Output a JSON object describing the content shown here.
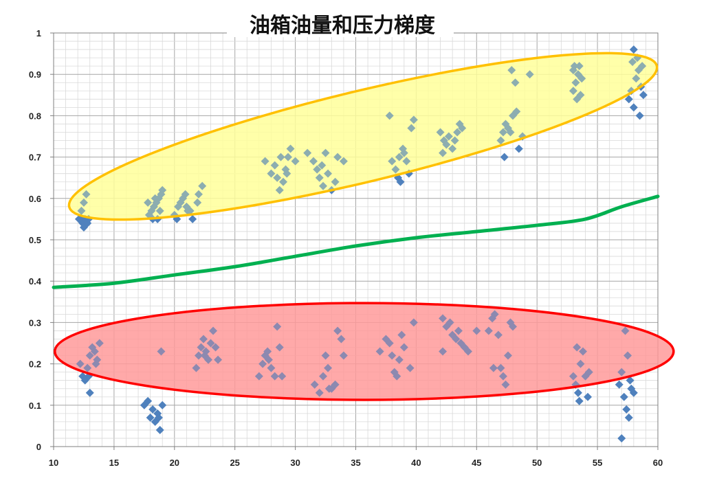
{
  "chart_data": {
    "type": "scatter",
    "title": "油箱油量和压力梯度",
    "xlabel": "",
    "ylabel": "",
    "xlim": [
      10,
      60
    ],
    "ylim": [
      0,
      1
    ],
    "x_ticks": [
      "10",
      "15",
      "20",
      "25",
      "30",
      "35",
      "40",
      "45",
      "50",
      "55",
      "60"
    ],
    "y_ticks": [
      "0",
      "0.1",
      "0.2",
      "0.3",
      "0.4",
      "0.5",
      "0.6",
      "0.7",
      "0.8",
      "0.9",
      "1"
    ],
    "grid": true,
    "legend": "none",
    "colors": {
      "points": "#4f81bd",
      "threshold_line": "#00b050",
      "upper_ellipse_fill": "#ffff99",
      "upper_ellipse_stroke": "#ffc000",
      "lower_ellipse_fill": "#ff9999",
      "lower_ellipse_stroke": "#ff0000",
      "grid_major": "#a6a6a6",
      "grid_minor": "#d9d9d9"
    },
    "series": [
      {
        "marker": "diamond",
        "points": [
          [
            12.2,
            0.55
          ],
          [
            12.4,
            0.54
          ],
          [
            12.5,
            0.53
          ],
          [
            12.6,
            0.55
          ],
          [
            12.8,
            0.54
          ],
          [
            12.3,
            0.57
          ],
          [
            12.5,
            0.59
          ],
          [
            12.7,
            0.61
          ],
          [
            12.1,
            0.55
          ],
          [
            12.9,
            0.55
          ],
          [
            17.9,
            0.56
          ],
          [
            18.1,
            0.57
          ],
          [
            18.3,
            0.58
          ],
          [
            18.5,
            0.59
          ],
          [
            18.7,
            0.6
          ],
          [
            18.9,
            0.61
          ],
          [
            19.0,
            0.62
          ],
          [
            18.2,
            0.55
          ],
          [
            18.6,
            0.55
          ],
          [
            18.8,
            0.57
          ],
          [
            18.4,
            0.6
          ],
          [
            17.8,
            0.59
          ],
          [
            20.0,
            0.56
          ],
          [
            20.3,
            0.58
          ],
          [
            20.5,
            0.59
          ],
          [
            20.7,
            0.6
          ],
          [
            20.9,
            0.61
          ],
          [
            21.0,
            0.58
          ],
          [
            21.3,
            0.57
          ],
          [
            21.5,
            0.55
          ],
          [
            20.2,
            0.55
          ],
          [
            21.1,
            0.57
          ],
          [
            21.9,
            0.59
          ],
          [
            22.0,
            0.61
          ],
          [
            22.3,
            0.63
          ],
          [
            27.5,
            0.69
          ],
          [
            28.0,
            0.66
          ],
          [
            28.3,
            0.68
          ],
          [
            28.5,
            0.65
          ],
          [
            28.7,
            0.62
          ],
          [
            29.0,
            0.64
          ],
          [
            29.2,
            0.67
          ],
          [
            29.4,
            0.7
          ],
          [
            29.6,
            0.72
          ],
          [
            30.0,
            0.69
          ],
          [
            28.8,
            0.7
          ],
          [
            29.3,
            0.66
          ],
          [
            31.0,
            0.71
          ],
          [
            31.5,
            0.69
          ],
          [
            31.8,
            0.67
          ],
          [
            32.0,
            0.65
          ],
          [
            32.3,
            0.63
          ],
          [
            32.5,
            0.71
          ],
          [
            32.7,
            0.66
          ],
          [
            33.0,
            0.62
          ],
          [
            33.3,
            0.64
          ],
          [
            33.5,
            0.7
          ],
          [
            34.0,
            0.69
          ],
          [
            32.2,
            0.68
          ],
          [
            37.8,
            0.8
          ],
          [
            38.0,
            0.69
          ],
          [
            38.3,
            0.67
          ],
          [
            38.5,
            0.65
          ],
          [
            38.7,
            0.64
          ],
          [
            39.0,
            0.71
          ],
          [
            39.2,
            0.69
          ],
          [
            39.4,
            0.66
          ],
          [
            39.6,
            0.77
          ],
          [
            39.8,
            0.79
          ],
          [
            38.9,
            0.72
          ],
          [
            38.6,
            0.7
          ],
          [
            42.0,
            0.76
          ],
          [
            42.3,
            0.74
          ],
          [
            42.5,
            0.73
          ],
          [
            42.7,
            0.75
          ],
          [
            43.0,
            0.72
          ],
          [
            43.2,
            0.74
          ],
          [
            43.4,
            0.76
          ],
          [
            43.6,
            0.78
          ],
          [
            43.8,
            0.77
          ],
          [
            42.2,
            0.71
          ],
          [
            47.0,
            0.74
          ],
          [
            47.2,
            0.76
          ],
          [
            47.4,
            0.78
          ],
          [
            47.6,
            0.77
          ],
          [
            47.8,
            0.76
          ],
          [
            48.0,
            0.8
          ],
          [
            48.2,
            0.88
          ],
          [
            48.3,
            0.81
          ],
          [
            48.5,
            0.72
          ],
          [
            48.8,
            0.75
          ],
          [
            47.3,
            0.7
          ],
          [
            49.4,
            0.9
          ],
          [
            47.9,
            0.91
          ],
          [
            53.0,
            0.86
          ],
          [
            53.2,
            0.88
          ],
          [
            53.4,
            0.9
          ],
          [
            53.5,
            0.92
          ],
          [
            53.6,
            0.85
          ],
          [
            53.3,
            0.84
          ],
          [
            53.1,
            0.92
          ],
          [
            53.7,
            0.89
          ],
          [
            53.0,
            0.91
          ],
          [
            57.6,
            0.84
          ],
          [
            57.8,
            0.86
          ],
          [
            58.0,
            0.82
          ],
          [
            58.2,
            0.89
          ],
          [
            58.4,
            0.91
          ],
          [
            58.6,
            0.87
          ],
          [
            58.8,
            0.85
          ],
          [
            58.0,
            0.96
          ],
          [
            58.3,
            0.94
          ],
          [
            58.5,
            0.8
          ],
          [
            58.7,
            0.92
          ],
          [
            57.9,
            0.93
          ],
          [
            12.2,
            0.2
          ],
          [
            12.4,
            0.17
          ],
          [
            12.6,
            0.16
          ],
          [
            12.8,
            0.19
          ],
          [
            13.0,
            0.22
          ],
          [
            13.2,
            0.24
          ],
          [
            13.4,
            0.23
          ],
          [
            13.6,
            0.21
          ],
          [
            13.8,
            0.25
          ],
          [
            13.0,
            0.13
          ],
          [
            12.9,
            0.17
          ],
          [
            13.5,
            0.2
          ],
          [
            17.5,
            0.1
          ],
          [
            17.8,
            0.11
          ],
          [
            18.0,
            0.07
          ],
          [
            18.2,
            0.09
          ],
          [
            18.4,
            0.06
          ],
          [
            18.6,
            0.08
          ],
          [
            18.8,
            0.04
          ],
          [
            19.0,
            0.1
          ],
          [
            18.9,
            0.23
          ],
          [
            18.7,
            0.07
          ],
          [
            21.8,
            0.19
          ],
          [
            22.0,
            0.22
          ],
          [
            22.2,
            0.24
          ],
          [
            22.4,
            0.26
          ],
          [
            22.6,
            0.23
          ],
          [
            22.8,
            0.21
          ],
          [
            23.0,
            0.25
          ],
          [
            23.2,
            0.28
          ],
          [
            23.4,
            0.24
          ],
          [
            23.6,
            0.21
          ],
          [
            22.5,
            0.22
          ],
          [
            27.0,
            0.17
          ],
          [
            27.3,
            0.2
          ],
          [
            27.5,
            0.22
          ],
          [
            27.7,
            0.23
          ],
          [
            28.0,
            0.19
          ],
          [
            28.3,
            0.17
          ],
          [
            28.5,
            0.29
          ],
          [
            28.7,
            0.24
          ],
          [
            28.9,
            0.17
          ],
          [
            27.8,
            0.21
          ],
          [
            31.6,
            0.15
          ],
          [
            32.0,
            0.13
          ],
          [
            32.3,
            0.17
          ],
          [
            32.5,
            0.22
          ],
          [
            32.7,
            0.19
          ],
          [
            33.0,
            0.14
          ],
          [
            33.3,
            0.15
          ],
          [
            33.5,
            0.28
          ],
          [
            33.8,
            0.26
          ],
          [
            34.0,
            0.22
          ],
          [
            32.8,
            0.14
          ],
          [
            37.0,
            0.23
          ],
          [
            37.5,
            0.26
          ],
          [
            37.8,
            0.25
          ],
          [
            38.0,
            0.22
          ],
          [
            38.2,
            0.18
          ],
          [
            38.4,
            0.17
          ],
          [
            38.6,
            0.21
          ],
          [
            38.8,
            0.27
          ],
          [
            39.0,
            0.24
          ],
          [
            39.5,
            0.19
          ],
          [
            39.8,
            0.3
          ],
          [
            42.2,
            0.31
          ],
          [
            42.5,
            0.29
          ],
          [
            42.8,
            0.3
          ],
          [
            43.0,
            0.27
          ],
          [
            43.3,
            0.26
          ],
          [
            43.5,
            0.28
          ],
          [
            43.7,
            0.25
          ],
          [
            44.0,
            0.24
          ],
          [
            44.3,
            0.23
          ],
          [
            42.2,
            0.23
          ],
          [
            45.0,
            0.28
          ],
          [
            46.0,
            0.28
          ],
          [
            46.3,
            0.31
          ],
          [
            46.5,
            0.32
          ],
          [
            46.8,
            0.27
          ],
          [
            47.0,
            0.19
          ],
          [
            47.2,
            0.17
          ],
          [
            47.4,
            0.15
          ],
          [
            47.6,
            0.22
          ],
          [
            47.8,
            0.3
          ],
          [
            48.0,
            0.29
          ],
          [
            46.4,
            0.19
          ],
          [
            53.0,
            0.17
          ],
          [
            53.2,
            0.15
          ],
          [
            53.4,
            0.13
          ],
          [
            53.5,
            0.11
          ],
          [
            53.6,
            0.2
          ],
          [
            53.8,
            0.23
          ],
          [
            54.0,
            0.17
          ],
          [
            54.2,
            0.12
          ],
          [
            53.3,
            0.24
          ],
          [
            54.3,
            0.18
          ],
          [
            56.8,
            0.15
          ],
          [
            57.0,
            0.18
          ],
          [
            57.2,
            0.12
          ],
          [
            57.4,
            0.09
          ],
          [
            57.6,
            0.07
          ],
          [
            57.8,
            0.14
          ],
          [
            58.0,
            0.13
          ],
          [
            57.5,
            0.22
          ],
          [
            57.3,
            0.28
          ],
          [
            57.0,
            0.02
          ],
          [
            57.7,
            0.16
          ]
        ]
      },
      {
        "type": "line",
        "points": [
          [
            10,
            0.385
          ],
          [
            15,
            0.395
          ],
          [
            20,
            0.415
          ],
          [
            25,
            0.435
          ],
          [
            30,
            0.46
          ],
          [
            35,
            0.485
          ],
          [
            40,
            0.505
          ],
          [
            45,
            0.52
          ],
          [
            50,
            0.535
          ],
          [
            54,
            0.55
          ],
          [
            57,
            0.58
          ],
          [
            60,
            0.605
          ]
        ]
      }
    ],
    "annotations": [
      {
        "shape": "ellipse",
        "cx": 35.6,
        "cy": 0.75,
        "rx": 25.0,
        "ry": 0.11,
        "rotation_deg": -13.5,
        "fill": "#ffff99",
        "stroke": "#ffc000"
      },
      {
        "shape": "ellipse",
        "cx": 35.7,
        "cy": 0.23,
        "rx": 25.6,
        "ry": 0.117,
        "rotation_deg": 0,
        "fill": "#ff9999",
        "stroke": "#ff0000"
      }
    ]
  }
}
